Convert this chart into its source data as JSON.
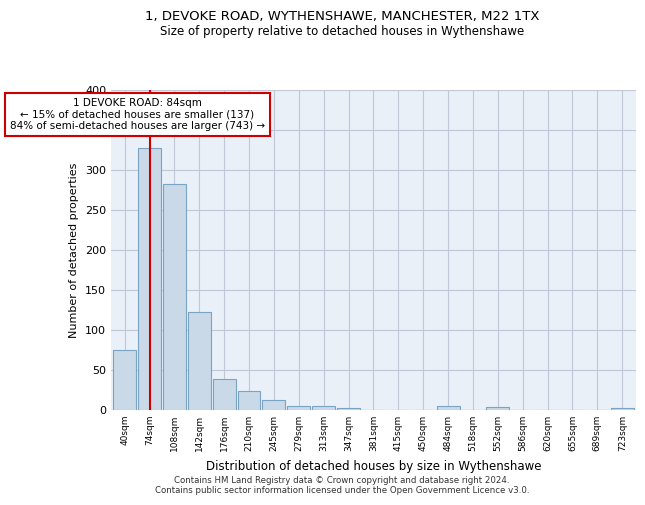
{
  "title1": "1, DEVOKE ROAD, WYTHENSHAWE, MANCHESTER, M22 1TX",
  "title2": "Size of property relative to detached houses in Wythenshawe",
  "xlabel": "Distribution of detached houses by size in Wythenshawe",
  "ylabel": "Number of detached properties",
  "footnote1": "Contains HM Land Registry data © Crown copyright and database right 2024.",
  "footnote2": "Contains public sector information licensed under the Open Government Licence v3.0.",
  "bin_labels": [
    "40sqm",
    "74sqm",
    "108sqm",
    "142sqm",
    "176sqm",
    "210sqm",
    "245sqm",
    "279sqm",
    "313sqm",
    "347sqm",
    "381sqm",
    "415sqm",
    "450sqm",
    "484sqm",
    "518sqm",
    "552sqm",
    "586sqm",
    "620sqm",
    "655sqm",
    "689sqm",
    "723sqm"
  ],
  "bar_heights": [
    75,
    328,
    283,
    123,
    39,
    24,
    12,
    5,
    5,
    3,
    0,
    0,
    0,
    5,
    0,
    4,
    0,
    0,
    0,
    0,
    3
  ],
  "bar_color": "#c9d9e8",
  "bar_edge_color": "#7ba3c4",
  "vline_x": 1,
  "vline_color": "#cc0000",
  "annotation_text": "1 DEVOKE ROAD: 84sqm\n← 15% of detached houses are smaller (137)\n84% of semi-detached houses are larger (743) →",
  "annotation_box_color": "#ffffff",
  "annotation_box_edge_color": "#cc0000",
  "ylim": [
    0,
    400
  ],
  "yticks": [
    0,
    50,
    100,
    150,
    200,
    250,
    300,
    350,
    400
  ],
  "grid_color": "#c0c8d8",
  "plot_bg_color": "#eaf0f8"
}
